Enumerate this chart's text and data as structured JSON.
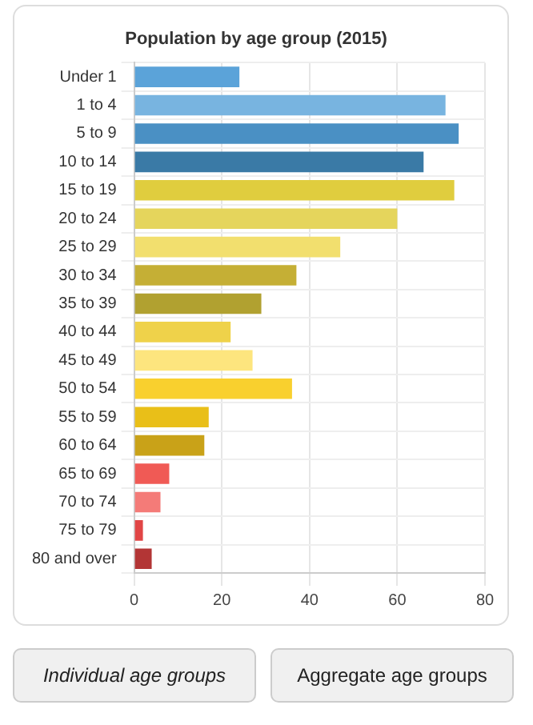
{
  "chart_data": {
    "type": "bar",
    "orientation": "horizontal",
    "title": "Population by age group (2015)",
    "categories": [
      "Under 1",
      "1 to 4",
      "5 to 9",
      "10 to 14",
      "15 to 19",
      "20 to 24",
      "25 to 29",
      "30 to 34",
      "35 to 39",
      "40 to 44",
      "45 to 49",
      "50 to 54",
      "55 to 59",
      "60 to 64",
      "65 to 69",
      "70 to 74",
      "75 to 79",
      "80 and over"
    ],
    "values": [
      24,
      71,
      74,
      66,
      73,
      60,
      47,
      37,
      29,
      22,
      27,
      36,
      17,
      16,
      8,
      6,
      2,
      4
    ],
    "colors": [
      "#5ba3d9",
      "#78b4e0",
      "#4a90c4",
      "#3a7aa6",
      "#e0cd3e",
      "#e5d55c",
      "#f2df6e",
      "#c5af35",
      "#b1a130",
      "#efd24a",
      "#fde57e",
      "#f9d02e",
      "#e9bf18",
      "#c9a218",
      "#f05a55",
      "#f47b78",
      "#e14545",
      "#b33535"
    ],
    "xlim": [
      0,
      80
    ],
    "xticks": [
      0,
      20,
      40,
      60,
      80
    ],
    "grid": true,
    "annotations": [
      "Individual age groups",
      "Aggregate age groups"
    ]
  }
}
